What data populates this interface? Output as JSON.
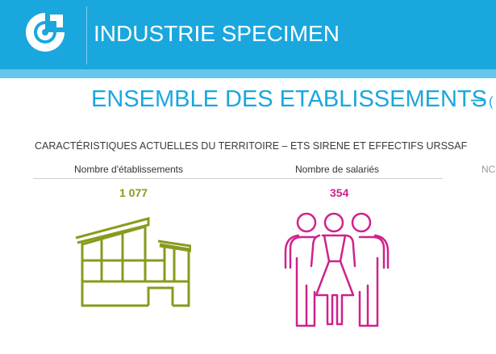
{
  "header": {
    "app_title": "INDUSTRIE SPECIMEN",
    "logo_icon": "cci-logo-icon",
    "background_color": "#1aa7de"
  },
  "main": {
    "page_title": "ENSEMBLE DES ETABLISSEMENTS",
    "page_title_dash": "–",
    "page_title_truncated": "(",
    "section_title": "CARACTÉRISTIQUES ACTUELLES DU TERRITOIRE  – ETS SIRENE ET EFFECTIFS URSSAF",
    "indicators": [
      {
        "label": "Nombre d'établissements",
        "value": "1 077",
        "color": "#8a9a1e",
        "icon": "factory-icon"
      },
      {
        "label": "Nombre de salariés",
        "value": "354",
        "color": "#d0228c",
        "icon": "people-icon"
      }
    ],
    "third_label_truncated": "NC"
  }
}
